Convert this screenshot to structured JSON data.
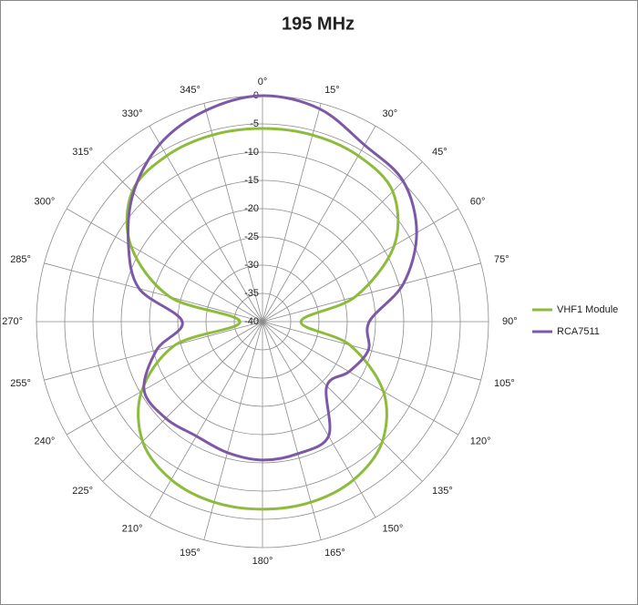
{
  "chart_data": {
    "type": "radar",
    "title": "195 MHz",
    "categories": [
      "0°",
      "15°",
      "30°",
      "45°",
      "60°",
      "75°",
      "90°",
      "105°",
      "120°",
      "135°",
      "150°",
      "165°",
      "180°",
      "195°",
      "210°",
      "225°",
      "240°",
      "255°",
      "270°",
      "285°",
      "300°",
      "315°",
      "330°",
      "345°"
    ],
    "series": [
      {
        "name": "VHF1 Module",
        "color": "#8dbb3c",
        "values": [
          -5.8,
          -5.8,
          -6.1,
          -7.4,
          -13.1,
          -23,
          -33.2,
          -24,
          -15.3,
          -10,
          -7.7,
          -6.9,
          -6.8,
          -6.9,
          -7.7,
          -10,
          -15.3,
          -24,
          -36,
          -23,
          -13.1,
          -7.4,
          -6.1,
          -5.8
        ]
      },
      {
        "name": "RCA7511",
        "color": "#7d58a6",
        "values": [
          0,
          -1,
          -3.9,
          -4.8,
          -8.5,
          -14.2,
          -21.1,
          -20.6,
          -22.3,
          -23.9,
          -16.6,
          -15.8,
          -15.5,
          -16,
          -16.6,
          -15.8,
          -15.8,
          -20.6,
          -25.8,
          -17.4,
          -12.6,
          -7.7,
          -3.7,
          -1.3
        ]
      }
    ],
    "rlim": [
      -40,
      0
    ],
    "rticks": [
      0,
      -5,
      -10,
      -15,
      -20,
      -25,
      -30,
      -35,
      -40
    ],
    "legend": "right"
  }
}
